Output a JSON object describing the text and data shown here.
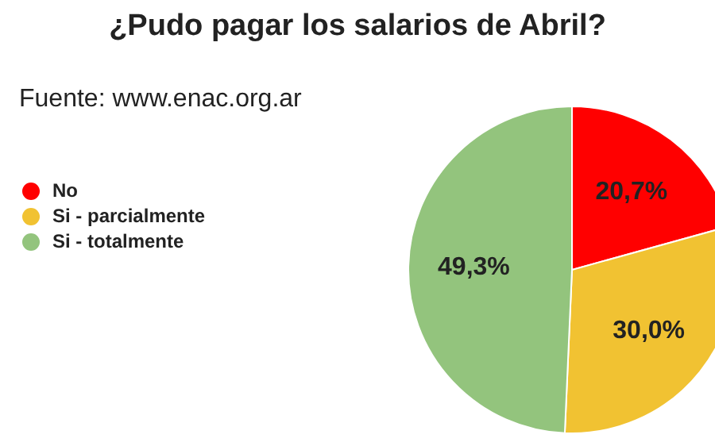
{
  "chart_data": {
    "type": "pie",
    "title": "¿Pudo pagar los salarios de Abril?",
    "annotations": [
      "Fuente: www.enac.org.ar"
    ],
    "categories": [
      "No",
      "Si - parcialmente",
      "Si - totalmente"
    ],
    "values": [
      20.7,
      30.0,
      49.3
    ],
    "value_labels": [
      "20,7%",
      "30,0%",
      "49,3%"
    ],
    "colors": [
      "#ff0000",
      "#f1c232",
      "#93c47d"
    ],
    "legend": "left"
  }
}
